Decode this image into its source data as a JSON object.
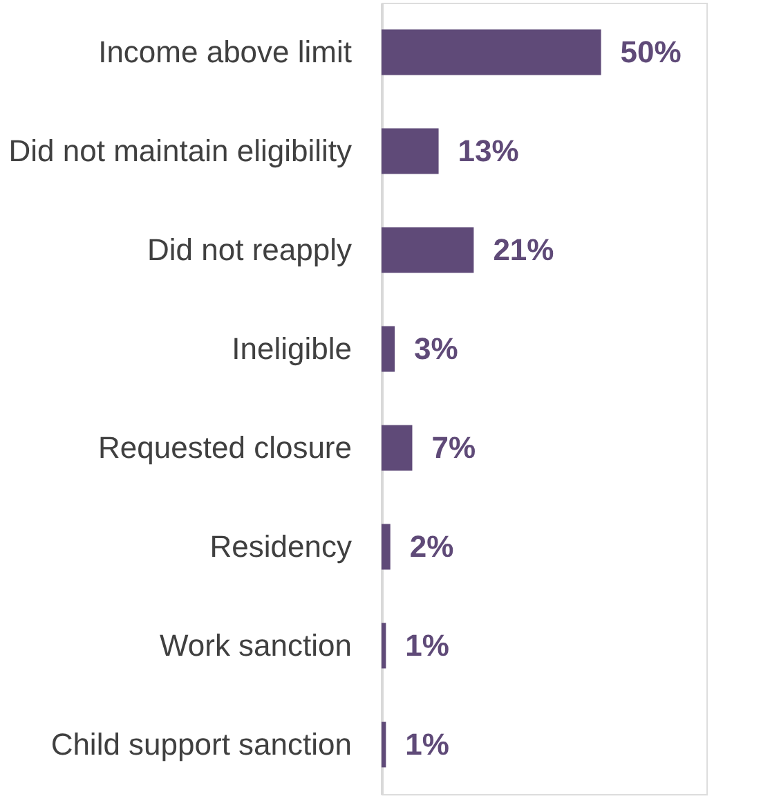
{
  "chart_data": {
    "type": "bar",
    "orientation": "horizontal",
    "categories": [
      "Income above limit",
      "Did not maintain eligibility",
      "Did not reapply",
      "Ineligible",
      "Requested closure",
      "Residency",
      "Work sanction",
      "Child support sanction"
    ],
    "values": [
      50,
      13,
      21,
      3,
      7,
      2,
      1,
      1
    ],
    "value_labels": [
      "50%",
      "13%",
      "21%",
      "3%",
      "7%",
      "2%",
      "1%",
      "1%"
    ],
    "color": "#5f4a78"
  }
}
